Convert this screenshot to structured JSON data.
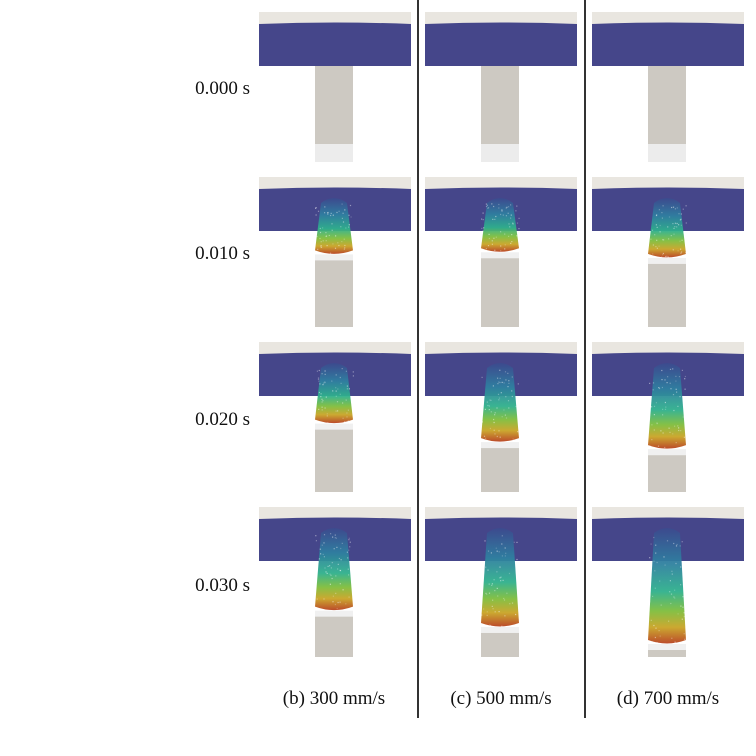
{
  "time_labels": [
    "0.000 s",
    "0.010 s",
    "0.020 s",
    "0.030 s"
  ],
  "column_labels": [
    "(b) 300 mm/s",
    "(c) 500 mm/s",
    "(d) 700 mm/s"
  ],
  "colors": {
    "plate": "#45468a",
    "plate_top": "#e9e6e0",
    "tube": "#cdc9c2",
    "tube_base": "#ececec",
    "divider": "#333333"
  },
  "simulation": {
    "speeds_mm_s": [
      300,
      500,
      700
    ],
    "times_s": [
      0.0,
      0.01,
      0.02,
      0.03
    ],
    "intrusion_fraction": [
      [
        0.0,
        0.16,
        0.22,
        0.53
      ],
      [
        0.0,
        0.13,
        0.48,
        0.76
      ],
      [
        0.0,
        0.21,
        0.58,
        1.0
      ]
    ]
  }
}
